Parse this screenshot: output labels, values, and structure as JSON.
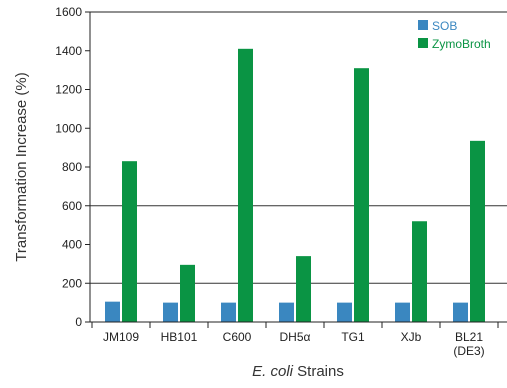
{
  "chart_data": {
    "type": "bar",
    "categories": [
      "JM109",
      "HB101",
      "C600",
      "DH5α",
      "TG1",
      "XJb",
      "BL21"
    ],
    "category_sublabels": [
      "",
      "",
      "",
      "",
      "",
      "",
      "(DE3)"
    ],
    "series": [
      {
        "name": "SOB",
        "values": [
          105,
          100,
          100,
          100,
          100,
          100,
          100
        ],
        "color": "#3a87c0"
      },
      {
        "name": "ZymoBroth",
        "values": [
          830,
          295,
          1410,
          340,
          1310,
          520,
          935
        ],
        "color": "#0a9444"
      }
    ],
    "title": "",
    "xlabel_italic": "E. coli",
    "xlabel_rest": " Strains",
    "ylabel": "Transformation Increase (%)",
    "ylim": [
      0,
      1600
    ],
    "yticks": [
      0,
      200,
      400,
      600,
      800,
      1000,
      1200,
      1400,
      1600
    ],
    "gridlines": [
      200,
      600
    ],
    "legend_position": "top-right"
  }
}
